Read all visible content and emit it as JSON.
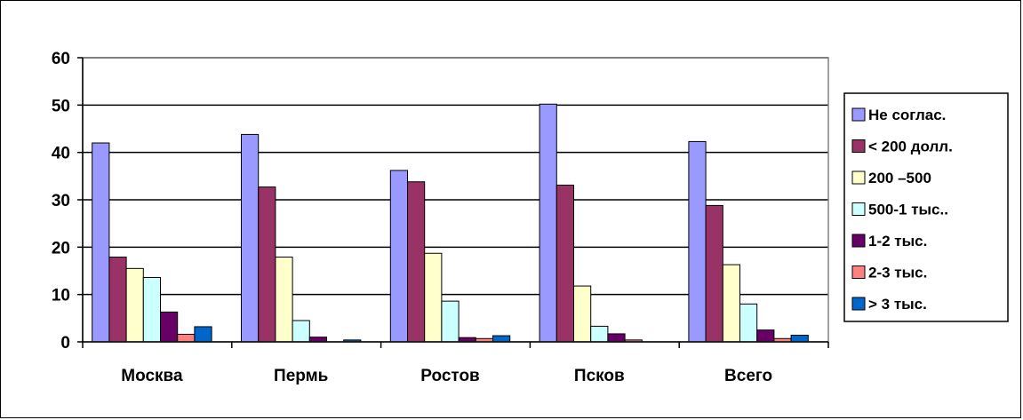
{
  "chart_data": {
    "type": "bar",
    "title": "",
    "xlabel": "",
    "ylabel": "",
    "ylim": [
      0,
      60
    ],
    "yticks": [
      0,
      10,
      20,
      30,
      40,
      50,
      60
    ],
    "grid": true,
    "legend_position": "right",
    "categories": [
      "Москва",
      "Пермь",
      "Ростов",
      "Псков",
      "Всего"
    ],
    "series": [
      {
        "name": "Не соглас.",
        "color": "#9999FF",
        "values": [
          42,
          43.8,
          36.2,
          50.2,
          42.3
        ]
      },
      {
        "name": "< 200 долл.",
        "color": "#993366",
        "values": [
          17.9,
          32.7,
          33.8,
          33.1,
          28.8
        ]
      },
      {
        "name": "200 –500",
        "color": "#FFFFCC",
        "values": [
          15.5,
          17.9,
          18.7,
          11.8,
          16.3
        ]
      },
      {
        "name": "500-1 тыс..",
        "color": "#CCFFFF",
        "values": [
          13.6,
          4.5,
          8.6,
          3.3,
          8.0
        ]
      },
      {
        "name": "1-2 тыс.",
        "color": "#660066",
        "values": [
          6.3,
          1.0,
          0.9,
          1.7,
          2.5
        ]
      },
      {
        "name": "2-3 тыс.",
        "color": "#FF8080",
        "values": [
          1.6,
          0,
          0.7,
          0.4,
          0.7
        ]
      },
      {
        "name": "> 3 тыс.",
        "color": "#0066CC",
        "values": [
          3.2,
          0.4,
          1.3,
          0,
          1.4
        ]
      }
    ]
  }
}
